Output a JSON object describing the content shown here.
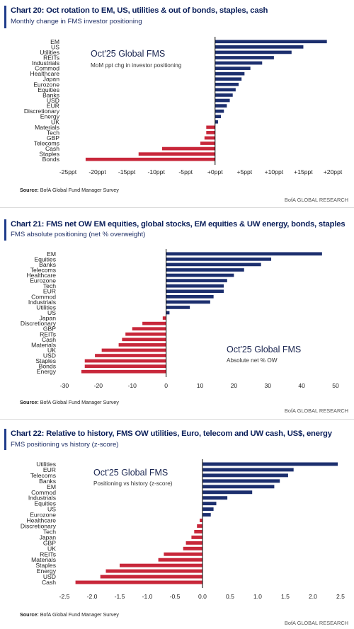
{
  "colors": {
    "positive": "#1c2f6e",
    "negative": "#c8273a",
    "axis": "#000000",
    "title": "#0b1f5a"
  },
  "source_label": "Source:",
  "brand": "BofA GLOBAL RESEARCH",
  "panels": [
    {
      "title": "Chart 20: Oct rotation to EM, US, utilities & out of bonds, staples, cash",
      "subtitle": "Monthly change in FMS investor positioning",
      "source_text": "BofA Global Fund Manager Survey",
      "annotation_title": "Oct'25 Global FMS",
      "annotation_sub": "MoM ppt chg in investor positioning"
    },
    {
      "title": "Chart 21: FMS net OW EM equities, global stocks, EM equities & UW energy, bonds, staples",
      "subtitle": "FMS absolute positioning (net % overweight)",
      "source_text": "BofA Global Fund Manager Survey",
      "annotation_title": "Oct'25 Global FMS",
      "annotation_sub": "Absolute net % OW"
    },
    {
      "title": "Chart 22: Relative to history, FMS OW utilities, Euro, telecom and UW cash, US$, energy",
      "subtitle": "FMS positioning vs history (z-score)",
      "source_text": "BofA Global Fund Manager Survey",
      "annotation_title": "Oct'25 Global FMS",
      "annotation_sub": "Positioning vs history (z-score)"
    }
  ],
  "chart_data": [
    {
      "type": "bar",
      "orientation": "horizontal",
      "categories": [
        "EM",
        "US",
        "Utilities",
        "REITs",
        "Industrials",
        "Commod",
        "Healthcare",
        "Japan",
        "Eurozone",
        "Equities",
        "Banks",
        "USD",
        "EUR",
        "Discretionary",
        "Energy",
        "UK",
        "Materials",
        "Tech",
        "GBP",
        "Telecoms",
        "Cash",
        "Staples",
        "Bonds"
      ],
      "values": [
        19,
        15,
        13,
        10,
        8,
        6,
        5,
        4.5,
        4,
        3.5,
        3,
        2.5,
        2,
        1.5,
        1,
        0.5,
        -1.5,
        -1.5,
        -1.8,
        -2.5,
        -9,
        -13,
        -22
      ],
      "xlim": [
        -25,
        20
      ],
      "xticks": [
        -25,
        -20,
        -15,
        -10,
        -5,
        0,
        5,
        10,
        15,
        20
      ],
      "xtick_labels": [
        "-25ppt",
        "-20ppt",
        "-15ppt",
        "-10ppt",
        "-5ppt",
        "+0ppt",
        "+5ppt",
        "+10ppt",
        "+15ppt",
        "+20ppt"
      ],
      "grid": false
    },
    {
      "type": "bar",
      "orientation": "horizontal",
      "categories": [
        "EM",
        "Equities",
        "Banks",
        "Telecoms",
        "Healthcare",
        "Eurozone",
        "Tech",
        "EUR",
        "Commod",
        "Industrials",
        "Utilities",
        "US",
        "Japan",
        "Discretionary",
        "GBP",
        "REITs",
        "Cash",
        "Materials",
        "UK",
        "USD",
        "Staples",
        "Bonds",
        "Energy"
      ],
      "values": [
        46,
        31,
        28,
        23,
        20,
        18,
        17,
        17,
        14,
        13,
        7,
        1,
        -1,
        -7,
        -10,
        -12,
        -13,
        -14,
        -19,
        -21,
        -24,
        -24,
        -25
      ],
      "xlim": [
        -30,
        50
      ],
      "xticks": [
        -30,
        -20,
        -10,
        0,
        10,
        20,
        30,
        40,
        50
      ],
      "xtick_labels": [
        "-30",
        "-20",
        "-10",
        "0",
        "10",
        "20",
        "30",
        "40",
        "50"
      ],
      "grid": false
    },
    {
      "type": "bar",
      "orientation": "horizontal",
      "categories": [
        "Utilities",
        "EUR",
        "Telecoms",
        "Banks",
        "EM",
        "Commod",
        "Industrials",
        "Equities",
        "US",
        "Eurozone",
        "Healthcare",
        "Discretionary",
        "Tech",
        "Japan",
        "GBP",
        "UK",
        "REITs",
        "Materials",
        "Staples",
        "Energy",
        "USD",
        "Cash"
      ],
      "values": [
        2.45,
        1.65,
        1.55,
        1.4,
        1.3,
        0.9,
        0.45,
        0.25,
        0.2,
        0.15,
        -0.05,
        -0.1,
        -0.15,
        -0.2,
        -0.3,
        -0.35,
        -0.7,
        -0.8,
        -1.5,
        -1.75,
        -1.85,
        -2.3
      ],
      "xlim": [
        -2.5,
        2.5
      ],
      "xticks": [
        -2.5,
        -2.0,
        -1.5,
        -1.0,
        -0.5,
        0.0,
        0.5,
        1.0,
        1.5,
        2.0,
        2.5
      ],
      "xtick_labels": [
        "-2.5",
        "-2.0",
        "-1.5",
        "-1.0",
        "-0.5",
        "0.0",
        "0.5",
        "1.0",
        "1.5",
        "2.0",
        "2.5"
      ],
      "grid": false
    }
  ]
}
